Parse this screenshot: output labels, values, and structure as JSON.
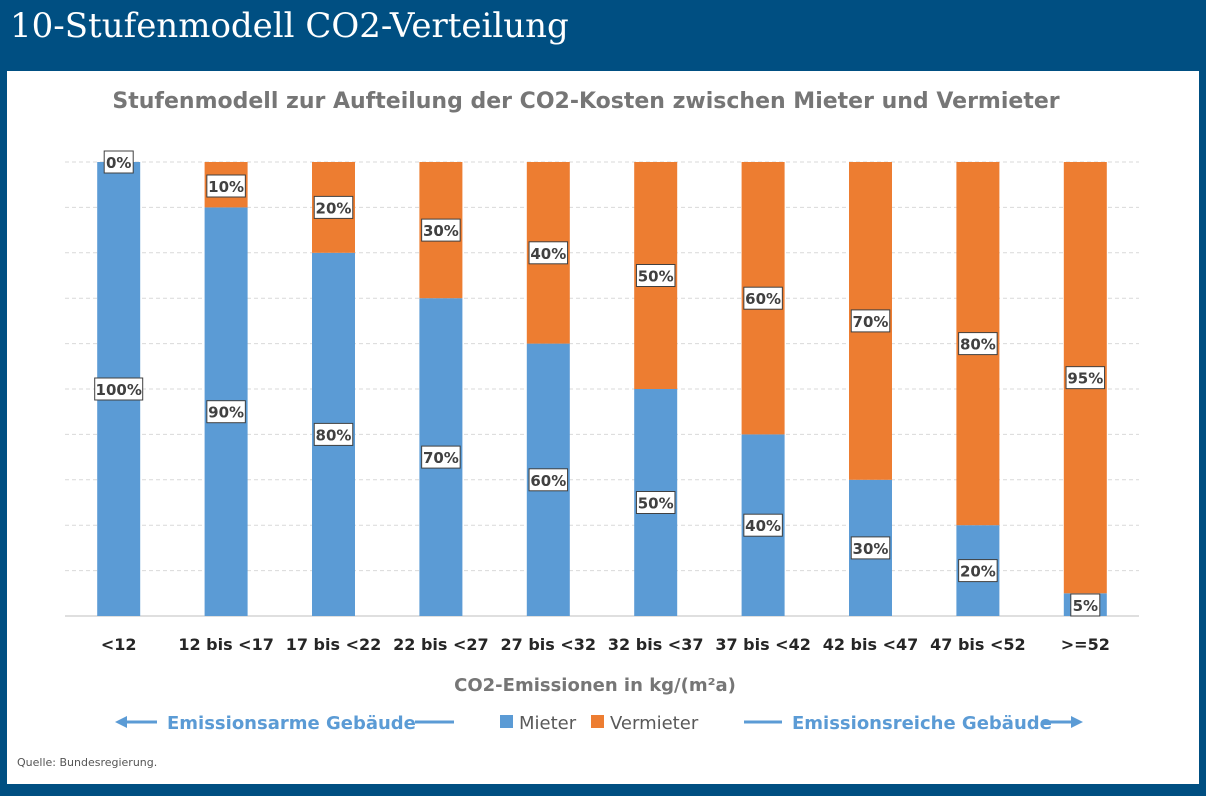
{
  "header": {
    "title": "10-Stufenmodell CO2-Verteilung"
  },
  "source": "Quelle: Bundesregierung.",
  "colors": {
    "header_bg": "#004f82",
    "mieter": "#5b9bd5",
    "vermieter": "#ed7d31",
    "arrow_text": "#5b9bd5",
    "grid": "#d9d9d9",
    "title_text": "#767676"
  },
  "chart_data": {
    "type": "bar",
    "stacked": true,
    "title": "Stufenmodell zur Aufteilung der CO2-Kosten zwischen Mieter und Vermieter",
    "xlabel": "CO2-Emissionen in kg/(m²a)",
    "ylabel": "",
    "ylim": [
      0,
      100
    ],
    "grid": true,
    "legend_position": "bottom",
    "categories": [
      "<12",
      "12 bis <17",
      "17 bis <22",
      "22 bis <27",
      "27 bis <32",
      "32 bis <37",
      "37 bis <42",
      "42 bis <47",
      "47 bis <52",
      ">=52"
    ],
    "series": [
      {
        "name": "Mieter",
        "color": "#5b9bd5",
        "values": [
          100,
          90,
          80,
          70,
          60,
          50,
          40,
          30,
          20,
          5
        ],
        "labels": [
          "100%",
          "90%",
          "80%",
          "70%",
          "60%",
          "50%",
          "40%",
          "30%",
          "20%",
          "5%"
        ]
      },
      {
        "name": "Vermieter",
        "color": "#ed7d31",
        "values": [
          0,
          10,
          20,
          30,
          40,
          50,
          60,
          70,
          80,
          95
        ],
        "labels": [
          "0%",
          "10%",
          "20%",
          "30%",
          "40%",
          "50%",
          "60%",
          "70%",
          "80%",
          "95%"
        ]
      }
    ],
    "legend_arrows": {
      "left": "Emissionsarme Gebäude",
      "right": "Emissionsreiche Gebäude"
    }
  }
}
